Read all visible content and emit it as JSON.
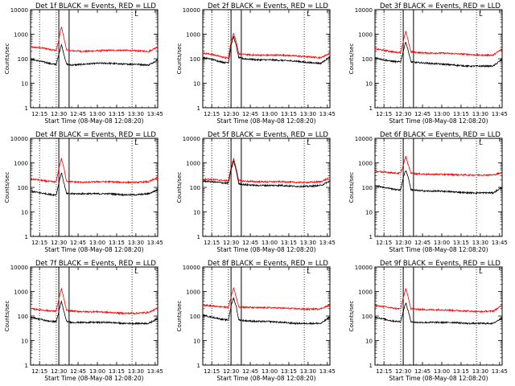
{
  "chart_data": [
    {
      "type": "line",
      "title": "Det 1f BLACK = Events, RED = LLD",
      "xlabel": "Start Time (08-May-08 12:08:20)",
      "ylabel": "Counts/sec",
      "yscale": "log",
      "ylim": [
        1,
        10000
      ],
      "x_ticks": [
        "12:15",
        "12:30",
        "12:45",
        "13:00",
        "13:15",
        "13:30",
        "13:45"
      ],
      "y_ticks": [
        "1",
        "10",
        "100",
        "1000",
        "10000"
      ],
      "x": [
        "12:08",
        "12:15",
        "12:20",
        "12:25",
        "12:28",
        "12:30",
        "12:32",
        "12:34",
        "12:36",
        "12:40",
        "12:50",
        "13:00",
        "13:10",
        "13:20",
        "13:30",
        "13:40",
        "13:47"
      ],
      "series": [
        {
          "name": "LLD",
          "color": "#ff0000",
          "values": [
            300,
            280,
            260,
            230,
            220,
            600,
            2000,
            700,
            230,
            210,
            200,
            210,
            220,
            220,
            210,
            200,
            300
          ]
        },
        {
          "name": "Events",
          "color": "#000000",
          "values": [
            95,
            80,
            70,
            60,
            60,
            150,
            380,
            150,
            60,
            55,
            60,
            65,
            65,
            60,
            60,
            55,
            90
          ]
        }
      ],
      "markers": {
        "dotted": [
          "12:15",
          "12:28",
          "13:27"
        ],
        "solid": [
          "12:30",
          "12:38"
        ],
        "marker_label": "L"
      }
    },
    {
      "type": "line",
      "title": "Det 2f BLACK = Events, RED = LLD",
      "xlabel": "Start Time (08-May-08 12:08:20)",
      "ylabel": "Counts/sec",
      "yscale": "log",
      "ylim": [
        1,
        10000
      ],
      "x_ticks": [
        "12:15",
        "12:30",
        "12:45",
        "13:00",
        "13:15",
        "13:30",
        "13:45"
      ],
      "y_ticks": [
        "1",
        "10",
        "100",
        "1000",
        "10000"
      ],
      "x": [
        "12:08",
        "12:15",
        "12:20",
        "12:25",
        "12:28",
        "12:30",
        "12:32",
        "12:34",
        "12:36",
        "12:40",
        "12:50",
        "13:00",
        "13:10",
        "13:20",
        "13:30",
        "13:40",
        "13:47"
      ],
      "series": [
        {
          "name": "LLD",
          "color": "#ff0000",
          "values": [
            170,
            150,
            130,
            110,
            110,
            500,
            1100,
            500,
            160,
            150,
            140,
            140,
            140,
            130,
            120,
            110,
            170
          ]
        },
        {
          "name": "Events",
          "color": "#000000",
          "values": [
            110,
            95,
            80,
            70,
            70,
            350,
            800,
            350,
            110,
            100,
            90,
            90,
            85,
            80,
            70,
            65,
            120
          ]
        }
      ],
      "markers": {
        "dotted": [
          "12:15",
          "12:28",
          "13:27"
        ],
        "solid": [
          "12:30",
          "12:38"
        ],
        "marker_label": "L"
      }
    },
    {
      "type": "line",
      "title": "Det 3f BLACK = Events, RED = LLD",
      "xlabel": "Start Time (08-May-08 12:08:20)",
      "ylabel": "Counts/sec",
      "yscale": "log",
      "ylim": [
        1,
        10000
      ],
      "x_ticks": [
        "12:15",
        "12:30",
        "12:45",
        "13:00",
        "13:15",
        "13:30",
        "13:45"
      ],
      "y_ticks": [
        "1",
        "10",
        "100",
        "1000",
        "10000"
      ],
      "x": [
        "12:08",
        "12:15",
        "12:20",
        "12:25",
        "12:28",
        "12:30",
        "12:32",
        "12:34",
        "12:36",
        "12:40",
        "12:50",
        "13:00",
        "13:10",
        "13:20",
        "13:30",
        "13:40",
        "13:47"
      ],
      "series": [
        {
          "name": "LLD",
          "color": "#ff0000",
          "values": [
            250,
            220,
            200,
            180,
            180,
            500,
            1300,
            500,
            190,
            180,
            170,
            170,
            160,
            150,
            140,
            140,
            250
          ]
        },
        {
          "name": "Events",
          "color": "#000000",
          "values": [
            110,
            90,
            80,
            75,
            75,
            200,
            500,
            200,
            75,
            70,
            65,
            60,
            55,
            50,
            50,
            50,
            95
          ]
        }
      ],
      "markers": {
        "dotted": [
          "12:15",
          "12:28",
          "13:27"
        ],
        "solid": [
          "12:30",
          "12:38"
        ],
        "marker_label": "L"
      }
    },
    {
      "type": "line",
      "title": "Det 4f BLACK = Events, RED = LLD",
      "xlabel": "Start Time (08-May-08 12:08:20)",
      "ylabel": "Counts/sec",
      "yscale": "log",
      "ylim": [
        1,
        10000
      ],
      "x_ticks": [
        "12:15",
        "12:30",
        "12:45",
        "13:00",
        "13:15",
        "13:30",
        "13:45"
      ],
      "y_ticks": [
        "1",
        "10",
        "100",
        "1000",
        "10000"
      ],
      "x": [
        "12:08",
        "12:15",
        "12:20",
        "12:25",
        "12:28",
        "12:30",
        "12:32",
        "12:34",
        "12:36",
        "12:40",
        "12:50",
        "13:00",
        "13:10",
        "13:20",
        "13:30",
        "13:40",
        "13:47"
      ],
      "series": [
        {
          "name": "LLD",
          "color": "#ff0000",
          "values": [
            220,
            200,
            180,
            170,
            170,
            600,
            1500,
            600,
            180,
            170,
            160,
            170,
            170,
            160,
            160,
            170,
            250
          ]
        },
        {
          "name": "Events",
          "color": "#000000",
          "values": [
            70,
            60,
            55,
            50,
            50,
            150,
            400,
            150,
            55,
            55,
            55,
            55,
            55,
            50,
            50,
            55,
            80
          ]
        }
      ],
      "markers": {
        "dotted": [
          "12:15",
          "12:28",
          "13:27"
        ],
        "solid": [
          "12:30",
          "12:38"
        ],
        "marker_label": "L"
      }
    },
    {
      "type": "line",
      "title": "Det 5f BLACK = Events, RED = LLD",
      "xlabel": "Start Time (08-May-08 12:08:20)",
      "ylabel": "Counts/sec",
      "yscale": "log",
      "ylim": [
        1,
        10000
      ],
      "x_ticks": [
        "12:15",
        "12:30",
        "12:45",
        "13:00",
        "13:15",
        "13:30",
        "13:45"
      ],
      "y_ticks": [
        "1",
        "10",
        "100",
        "1000",
        "10000"
      ],
      "x": [
        "12:08",
        "12:15",
        "12:20",
        "12:25",
        "12:28",
        "12:30",
        "12:32",
        "12:34",
        "12:36",
        "12:40",
        "12:50",
        "13:00",
        "13:10",
        "13:20",
        "13:30",
        "13:40",
        "13:47"
      ],
      "series": [
        {
          "name": "LLD",
          "color": "#ff0000",
          "values": [
            220,
            210,
            200,
            190,
            190,
            600,
            1500,
            600,
            190,
            180,
            170,
            170,
            170,
            160,
            160,
            170,
            250
          ]
        },
        {
          "name": "Events",
          "color": "#000000",
          "values": [
            180,
            170,
            160,
            150,
            150,
            500,
            1200,
            500,
            140,
            130,
            120,
            120,
            120,
            110,
            110,
            120,
            180
          ]
        }
      ],
      "markers": {
        "dotted": [
          "12:15",
          "12:28",
          "13:27"
        ],
        "solid": [
          "12:30",
          "12:38"
        ],
        "marker_label": "L"
      }
    },
    {
      "type": "line",
      "title": "Det 6f BLACK = Events, RED = LLD",
      "xlabel": "Start Time (08-May-08 12:08:20)",
      "ylabel": "Counts/sec",
      "yscale": "log",
      "ylim": [
        1,
        10000
      ],
      "x_ticks": [
        "12:15",
        "12:30",
        "12:45",
        "13:00",
        "13:15",
        "13:30",
        "13:45"
      ],
      "y_ticks": [
        "1",
        "10",
        "100",
        "1000",
        "10000"
      ],
      "x": [
        "12:08",
        "12:15",
        "12:20",
        "12:25",
        "12:28",
        "12:30",
        "12:32",
        "12:34",
        "12:36",
        "12:40",
        "12:50",
        "13:00",
        "13:10",
        "13:20",
        "13:30",
        "13:40",
        "13:47"
      ],
      "series": [
        {
          "name": "LLD",
          "color": "#ff0000",
          "values": [
            450,
            420,
            400,
            380,
            380,
            800,
            1800,
            800,
            380,
            360,
            340,
            340,
            330,
            320,
            320,
            320,
            400
          ]
        },
        {
          "name": "Events",
          "color": "#000000",
          "values": [
            120,
            100,
            90,
            80,
            80,
            250,
            500,
            250,
            80,
            75,
            70,
            70,
            65,
            60,
            60,
            60,
            100
          ]
        }
      ],
      "markers": {
        "dotted": [
          "12:15",
          "12:28",
          "13:27"
        ],
        "solid": [
          "12:30",
          "12:38"
        ],
        "marker_label": "L"
      }
    },
    {
      "type": "line",
      "title": "Det 7f BLACK = Events, RED = LLD",
      "xlabel": "Start Time (08-May-08 12:08:20)",
      "ylabel": "Counts/sec",
      "yscale": "log",
      "ylim": [
        1,
        10000
      ],
      "x_ticks": [
        "12:15",
        "12:30",
        "12:45",
        "13:00",
        "13:15",
        "13:30",
        "13:45"
      ],
      "y_ticks": [
        "1",
        "10",
        "100",
        "1000",
        "10000"
      ],
      "x": [
        "12:08",
        "12:15",
        "12:20",
        "12:25",
        "12:28",
        "12:30",
        "12:32",
        "12:34",
        "12:36",
        "12:40",
        "12:50",
        "13:00",
        "13:10",
        "13:20",
        "13:30",
        "13:40",
        "13:47"
      ],
      "series": [
        {
          "name": "LLD",
          "color": "#ff0000",
          "values": [
            200,
            180,
            170,
            160,
            160,
            500,
            1300,
            500,
            170,
            160,
            150,
            150,
            140,
            130,
            130,
            140,
            210
          ]
        },
        {
          "name": "Events",
          "color": "#000000",
          "values": [
            90,
            75,
            65,
            60,
            60,
            150,
            400,
            150,
            60,
            55,
            55,
            55,
            55,
            50,
            50,
            50,
            80
          ]
        }
      ],
      "markers": {
        "dotted": [
          "12:15",
          "12:28",
          "13:27"
        ],
        "solid": [
          "12:30",
          "12:38"
        ],
        "marker_label": "L"
      }
    },
    {
      "type": "line",
      "title": "Det 8f BLACK = Events, RED = LLD",
      "xlabel": "Start Time (08-May-08 12:08:20)",
      "ylabel": "Counts/sec",
      "yscale": "log",
      "ylim": [
        1,
        10000
      ],
      "x_ticks": [
        "12:15",
        "12:30",
        "12:45",
        "13:00",
        "13:15",
        "13:30",
        "13:45"
      ],
      "y_ticks": [
        "1",
        "10",
        "100",
        "1000",
        "10000"
      ],
      "x": [
        "12:08",
        "12:15",
        "12:20",
        "12:25",
        "12:28",
        "12:30",
        "12:32",
        "12:34",
        "12:36",
        "12:40",
        "12:50",
        "13:00",
        "13:10",
        "13:20",
        "13:30",
        "13:40",
        "13:47"
      ],
      "series": [
        {
          "name": "LLD",
          "color": "#ff0000",
          "values": [
            280,
            260,
            240,
            230,
            230,
            600,
            1400,
            600,
            240,
            230,
            220,
            220,
            210,
            200,
            190,
            200,
            280
          ]
        },
        {
          "name": "Events",
          "color": "#000000",
          "values": [
            110,
            90,
            80,
            70,
            70,
            250,
            550,
            250,
            70,
            65,
            60,
            60,
            55,
            50,
            50,
            50,
            90
          ]
        }
      ],
      "markers": {
        "dotted": [
          "12:15",
          "12:28",
          "13:27"
        ],
        "solid": [
          "12:30",
          "12:38"
        ],
        "marker_label": "L"
      }
    },
    {
      "type": "line",
      "title": "Det 9f BLACK = Events, RED = LLD",
      "xlabel": "Start Time (08-May-08 12:08:20)",
      "ylabel": "Counts/sec",
      "yscale": "log",
      "ylim": [
        1,
        10000
      ],
      "x_ticks": [
        "12:15",
        "12:30",
        "12:45",
        "13:00",
        "13:15",
        "13:30",
        "13:45"
      ],
      "y_ticks": [
        "1",
        "10",
        "100",
        "1000",
        "10000"
      ],
      "x": [
        "12:08",
        "12:15",
        "12:20",
        "12:25",
        "12:28",
        "12:30",
        "12:32",
        "12:34",
        "12:36",
        "12:40",
        "12:50",
        "13:00",
        "13:10",
        "13:20",
        "13:30",
        "13:40",
        "13:47"
      ],
      "series": [
        {
          "name": "LLD",
          "color": "#ff0000",
          "values": [
            270,
            240,
            220,
            200,
            200,
            550,
            1300,
            550,
            200,
            190,
            180,
            180,
            170,
            160,
            150,
            160,
            270
          ]
        },
        {
          "name": "Events",
          "color": "#000000",
          "values": [
            90,
            75,
            65,
            60,
            60,
            150,
            350,
            150,
            60,
            55,
            55,
            55,
            55,
            50,
            50,
            50,
            85
          ]
        }
      ],
      "markers": {
        "dotted": [
          "12:15",
          "12:28",
          "13:27"
        ],
        "solid": [
          "12:30",
          "12:38"
        ],
        "marker_label": "L"
      }
    }
  ]
}
